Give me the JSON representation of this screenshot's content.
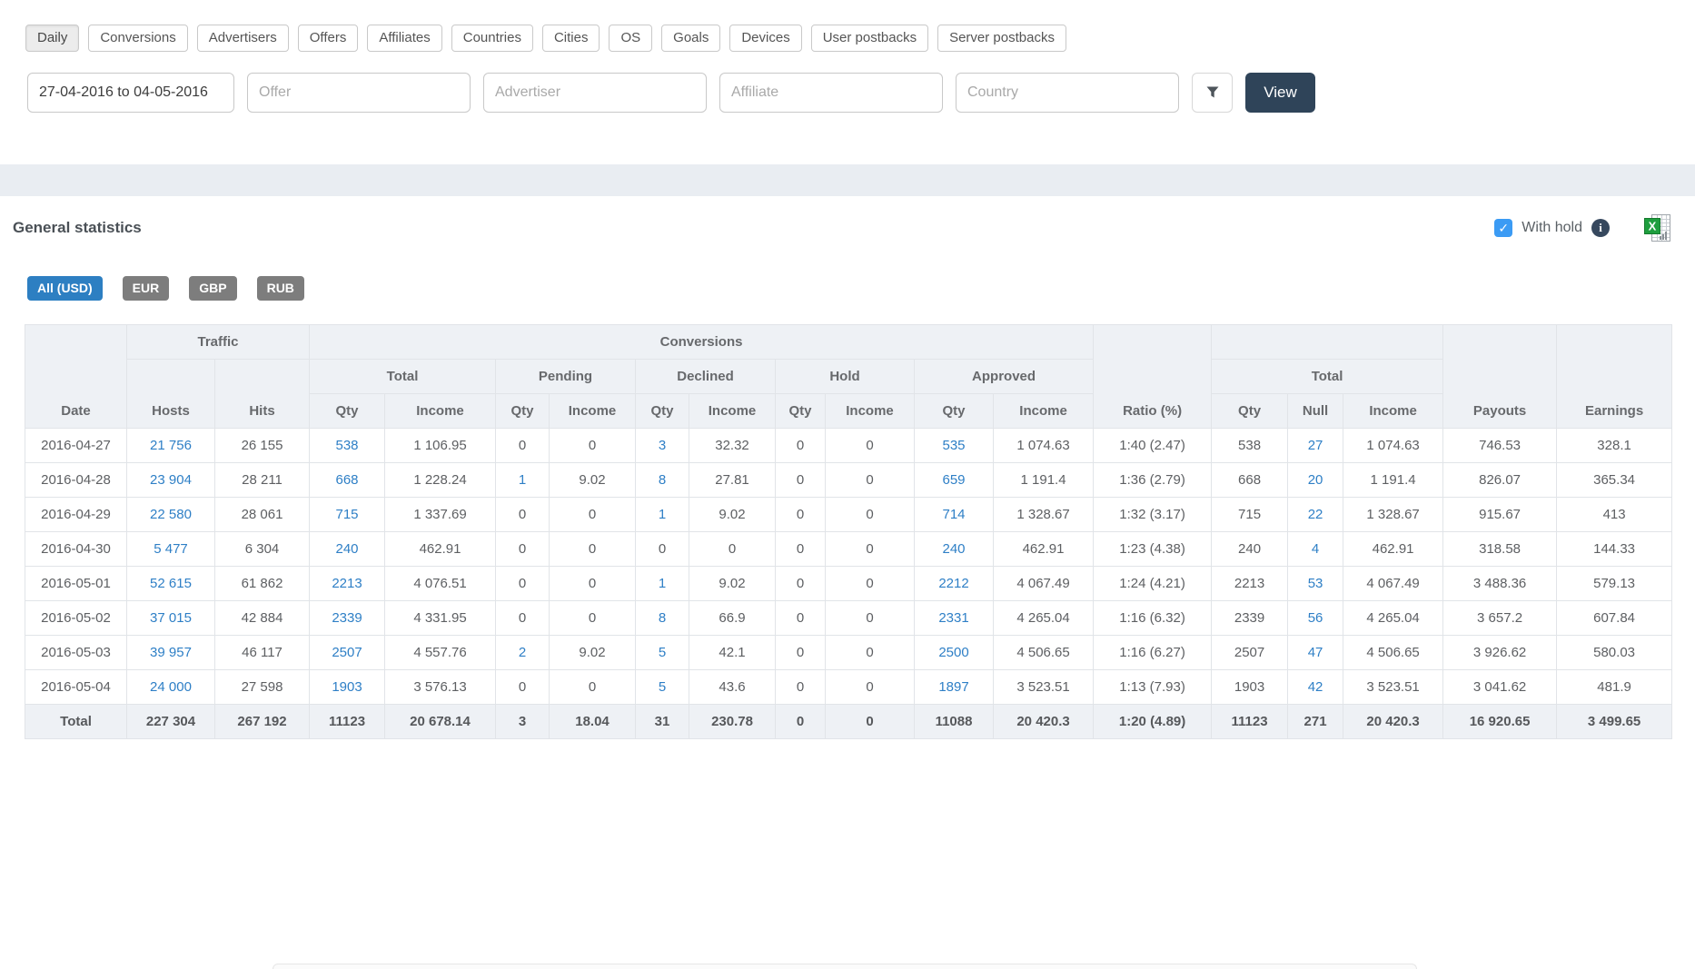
{
  "tabs": [
    {
      "label": "Daily",
      "active": true
    },
    {
      "label": "Conversions",
      "active": false
    },
    {
      "label": "Advertisers",
      "active": false
    },
    {
      "label": "Offers",
      "active": false
    },
    {
      "label": "Affiliates",
      "active": false
    },
    {
      "label": "Countries",
      "active": false
    },
    {
      "label": "Cities",
      "active": false
    },
    {
      "label": "OS",
      "active": false
    },
    {
      "label": "Goals",
      "active": false
    },
    {
      "label": "Devices",
      "active": false
    },
    {
      "label": "User postbacks",
      "active": false
    },
    {
      "label": "Server postbacks",
      "active": false
    }
  ],
  "filters": {
    "date_range": "27-04-2016 to 04-05-2016",
    "offer_placeholder": "Offer",
    "advertiser_placeholder": "Advertiser",
    "affiliate_placeholder": "Affiliate",
    "country_placeholder": "Country",
    "filter_icon": "funnel-icon",
    "view_label": "View"
  },
  "stats": {
    "title": "General statistics",
    "with_hold": {
      "label": "With hold",
      "checked": true,
      "info_icon": "info-circle-icon"
    },
    "export_icon": "excel-export-icon",
    "currencies": [
      {
        "label": "All (USD)",
        "active": true
      },
      {
        "label": "EUR",
        "active": false
      },
      {
        "label": "GBP",
        "active": false
      },
      {
        "label": "RUB",
        "active": false
      }
    ]
  },
  "table": {
    "labels": {
      "date": "Date",
      "traffic": "Traffic",
      "conversions": "Conversions",
      "total": "Total",
      "pending": "Pending",
      "declined": "Declined",
      "hold": "Hold",
      "approved": "Approved",
      "qty": "Qty",
      "income": "Income",
      "ratio": "Ratio (%)",
      "null": "Null",
      "payouts": "Payouts",
      "earnings": "Earnings"
    },
    "rows": [
      [
        "2016-04-27",
        "21 756",
        "26 155",
        "538",
        "1 106.95",
        "0",
        "0",
        "3",
        "32.32",
        "0",
        "0",
        "535",
        "1 074.63",
        "1:40 (2.47)",
        "538",
        "27",
        "1 074.63",
        "746.53",
        "328.1"
      ],
      [
        "2016-04-28",
        "23 904",
        "28 211",
        "668",
        "1 228.24",
        "1",
        "9.02",
        "8",
        "27.81",
        "0",
        "0",
        "659",
        "1 191.4",
        "1:36 (2.79)",
        "668",
        "20",
        "1 191.4",
        "826.07",
        "365.34"
      ],
      [
        "2016-04-29",
        "22 580",
        "28 061",
        "715",
        "1 337.69",
        "0",
        "0",
        "1",
        "9.02",
        "0",
        "0",
        "714",
        "1 328.67",
        "1:32 (3.17)",
        "715",
        "22",
        "1 328.67",
        "915.67",
        "413"
      ],
      [
        "2016-04-30",
        "5 477",
        "6 304",
        "240",
        "462.91",
        "0",
        "0",
        "0",
        "0",
        "0",
        "0",
        "240",
        "462.91",
        "1:23 (4.38)",
        "240",
        "4",
        "462.91",
        "318.58",
        "144.33"
      ],
      [
        "2016-05-01",
        "52 615",
        "61 862",
        "2213",
        "4 076.51",
        "0",
        "0",
        "1",
        "9.02",
        "0",
        "0",
        "2212",
        "4 067.49",
        "1:24 (4.21)",
        "2213",
        "53",
        "4 067.49",
        "3 488.36",
        "579.13"
      ],
      [
        "2016-05-02",
        "37 015",
        "42 884",
        "2339",
        "4 331.95",
        "0",
        "0",
        "8",
        "66.9",
        "0",
        "0",
        "2331",
        "4 265.04",
        "1:16 (6.32)",
        "2339",
        "56",
        "4 265.04",
        "3 657.2",
        "607.84"
      ],
      [
        "2016-05-03",
        "39 957",
        "46 117",
        "2507",
        "4 557.76",
        "2",
        "9.02",
        "5",
        "42.1",
        "0",
        "0",
        "2500",
        "4 506.65",
        "1:16 (6.27)",
        "2507",
        "47",
        "4 506.65",
        "3 926.62",
        "580.03"
      ],
      [
        "2016-05-04",
        "24 000",
        "27 598",
        "1903",
        "3 576.13",
        "0",
        "0",
        "5",
        "43.6",
        "0",
        "0",
        "1897",
        "3 523.51",
        "1:13 (7.93)",
        "1903",
        "42",
        "3 523.51",
        "3 041.62",
        "481.9"
      ]
    ],
    "total_row": [
      "Total",
      "227 304",
      "267 192",
      "11123",
      "20 678.14",
      "3",
      "18.04",
      "31",
      "230.78",
      "0",
      "0",
      "11088",
      "20 420.3",
      "1:20 (4.89)",
      "11123",
      "271",
      "20 420.3",
      "16 920.65",
      "3 499.65"
    ]
  },
  "colors": {
    "link": "#2e7fc6",
    "currency_active": "#2d7fc2",
    "currency_inactive": "#7d7d7d",
    "view_button": "#2f4459",
    "checkbox": "#3b9bf4",
    "band": "#e9edf2",
    "table_header_bg": "#eef1f5",
    "table_border": "#e1e4e8",
    "excel_green": "#1e9e3e"
  }
}
